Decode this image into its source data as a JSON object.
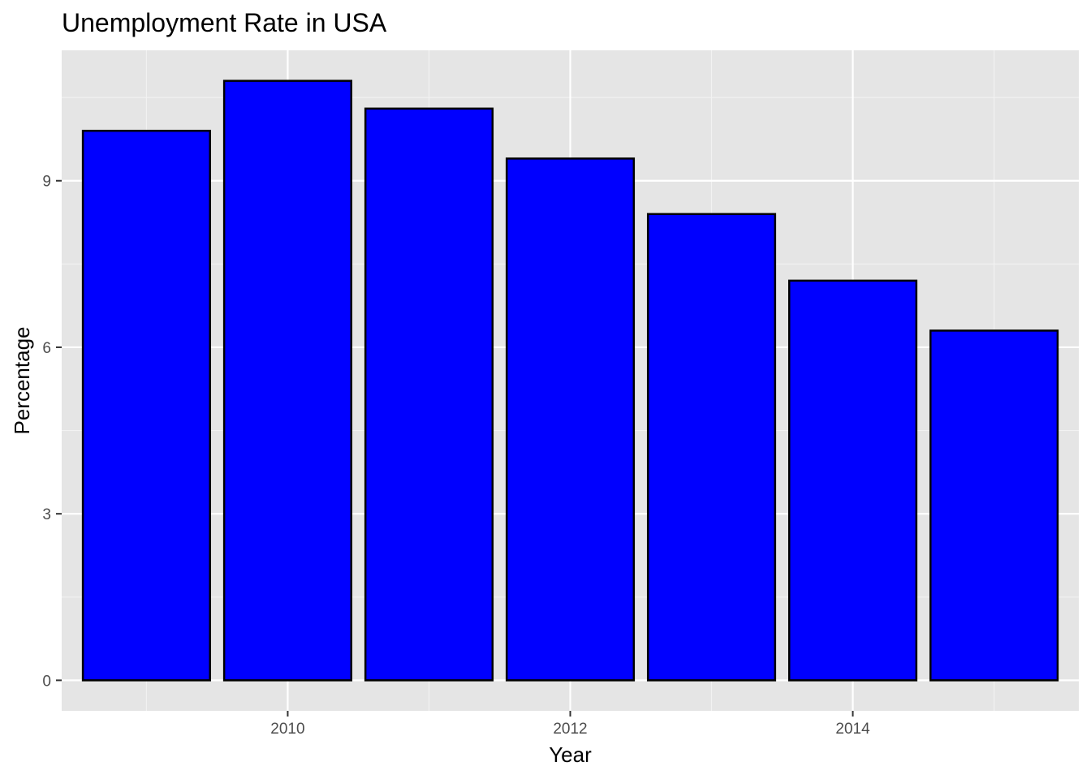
{
  "chart_data": {
    "type": "bar",
    "title": "Unemployment Rate in USA",
    "xlabel": "Year",
    "ylabel": "Percentage",
    "x": [
      2009,
      2010,
      2011,
      2012,
      2013,
      2014,
      2015
    ],
    "values": [
      9.9,
      10.8,
      10.3,
      9.4,
      8.4,
      7.2,
      6.3
    ],
    "xlim": [
      2008.4,
      2015.6
    ],
    "ylim": [
      -0.55,
      11.35
    ],
    "x_ticks": [
      2010,
      2012,
      2014
    ],
    "x_tick_labels": [
      "2010",
      "2012",
      "2014"
    ],
    "y_ticks": [
      0,
      3,
      6,
      9
    ],
    "y_tick_labels": [
      "0",
      "3",
      "6",
      "9"
    ],
    "grid": true,
    "legend": "none",
    "colors": {
      "bar_fill": "#0000ff",
      "bar_outline": "#000000",
      "panel_background": "#e5e5e5",
      "grid_major": "#ffffff",
      "grid_minor": "#f2f2f2",
      "tick_label": "#4d4d4d"
    }
  }
}
